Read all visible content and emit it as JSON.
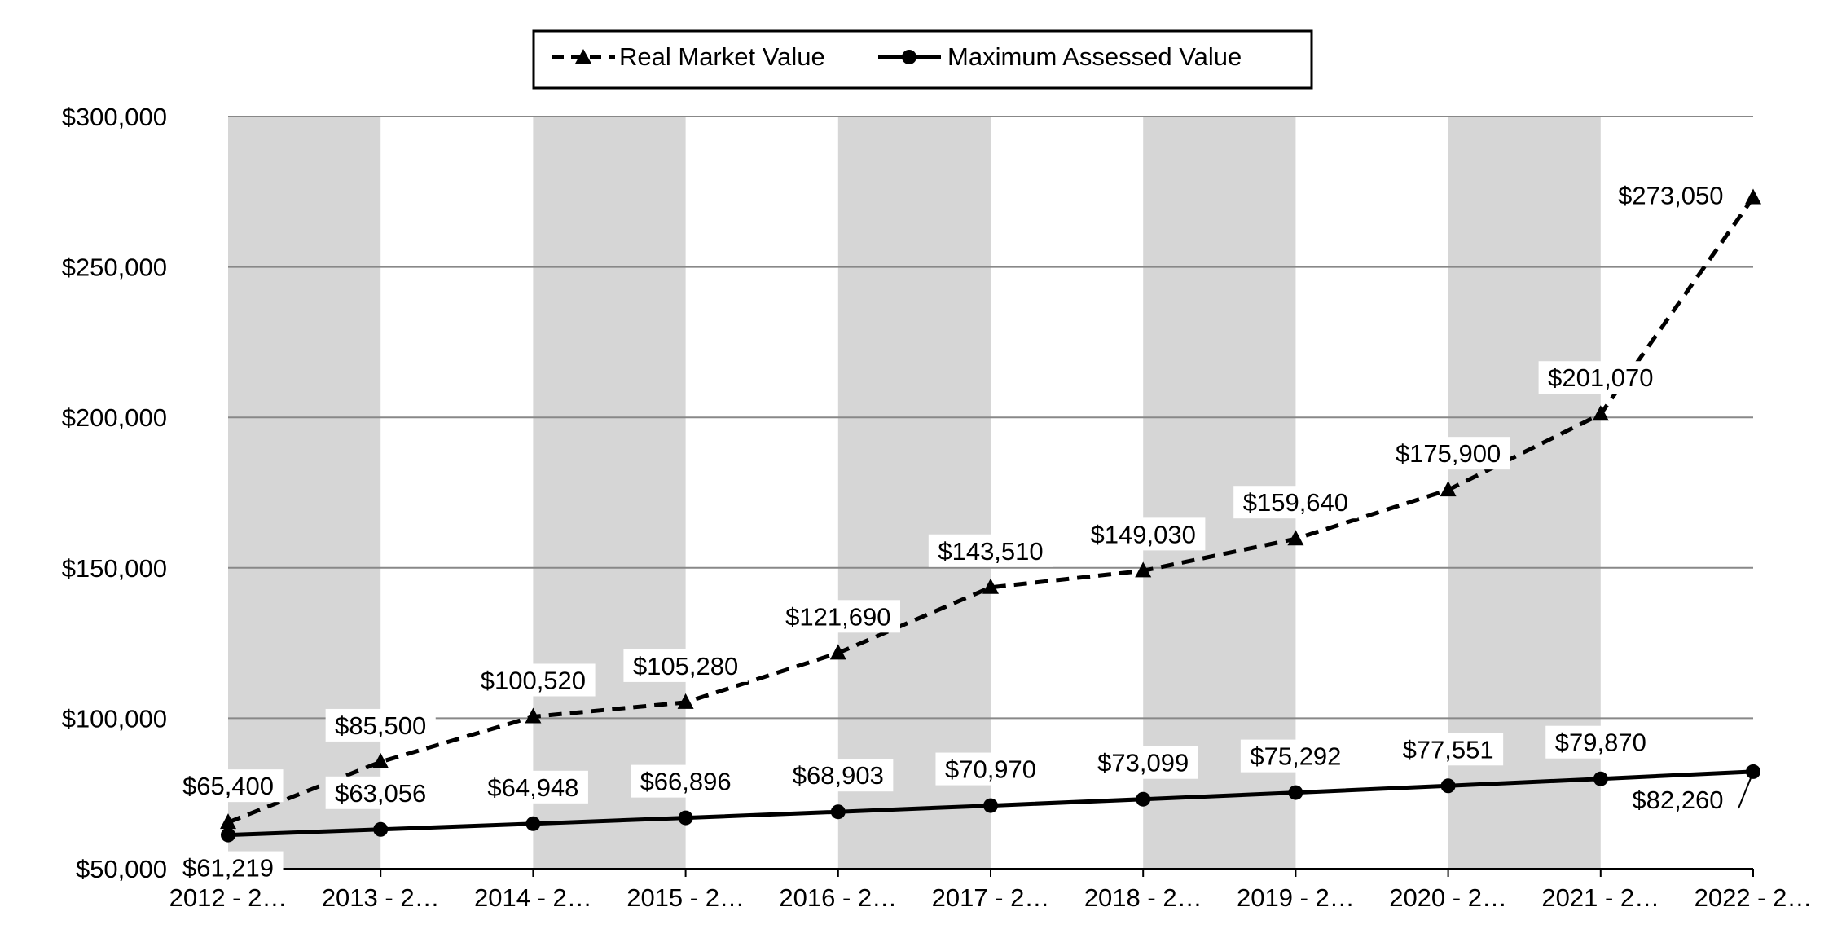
{
  "chart_data": {
    "type": "line",
    "title": "",
    "xlabel": "",
    "ylabel": "",
    "ylim": [
      50000,
      300000
    ],
    "y_ticks": [
      50000,
      100000,
      150000,
      200000,
      250000,
      300000
    ],
    "y_tick_labels": [
      "$50,000",
      "$100,000",
      "$150,000",
      "$200,000",
      "$250,000",
      "$300,000"
    ],
    "categories": [
      "2012 - 2…",
      "2013 - 2…",
      "2014 - 2…",
      "2015 - 2…",
      "2016 - 2…",
      "2017 - 2…",
      "2018 - 2…",
      "2019 - 2…",
      "2020 - 2…",
      "2021 - 2…",
      "2022 - 2…"
    ],
    "legend_position": "top-center",
    "grid": true,
    "series": [
      {
        "name": "Real Market Value",
        "style": "dashed",
        "marker": "triangle",
        "values": [
          65400,
          85500,
          100520,
          105280,
          121690,
          143510,
          149030,
          159640,
          175900,
          201070,
          273050
        ],
        "labels": [
          "$65,400",
          "$85,500",
          "$100,520",
          "$105,280",
          "$121,690",
          "$143,510",
          "$149,030",
          "$159,640",
          "$175,900",
          "$201,070",
          "$273,050"
        ]
      },
      {
        "name": "Maximum Assessed Value",
        "style": "solid",
        "marker": "circle",
        "values": [
          61219,
          63056,
          64948,
          66896,
          68903,
          70970,
          73099,
          75292,
          77551,
          79870,
          82260
        ],
        "labels": [
          "$61,219",
          "$63,056",
          "$64,948",
          "$66,896",
          "$68,903",
          "$70,970",
          "$73,099",
          "$75,292",
          "$77,551",
          "$79,870",
          "$82,260"
        ]
      }
    ],
    "colors": {
      "band": "#d6d6d6",
      "grid": "#888888",
      "line": "#000000",
      "label_bg": "#ffffff"
    }
  }
}
